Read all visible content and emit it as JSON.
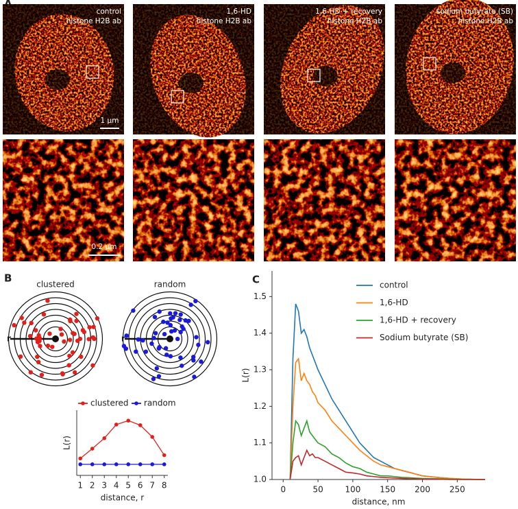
{
  "panel_a": {
    "label": "A",
    "images": [
      {
        "title": "control",
        "subtitle": "histone H2B ab"
      },
      {
        "title": "1,6-HD",
        "subtitle": "histone H2B ab"
      },
      {
        "title": "1,6-HD + recovery",
        "subtitle": "histone H2B ab"
      },
      {
        "title": "sodium butyrate (SB)",
        "subtitle": "histone H2B ab"
      }
    ],
    "scale_bars": [
      "1 μm",
      "0.2 μm"
    ]
  },
  "panel_b": {
    "label": "B",
    "diagrams": [
      "clustered",
      "random"
    ],
    "radius_label": "r"
  },
  "panel_c": {
    "label": "C"
  },
  "chart_data": [
    {
      "type": "line",
      "xlabel": "distance, r",
      "ylabel": "L(r)",
      "markers": true,
      "legend": "top",
      "x": [
        1,
        2,
        3,
        4,
        5,
        6,
        7,
        8
      ],
      "xlim": [
        0.7,
        8.3
      ],
      "xticks": [
        1,
        2,
        3,
        4,
        5,
        6,
        7,
        8
      ],
      "ylim": [
        0,
        1
      ],
      "series": [
        {
          "name": "clustered",
          "color": "#e0201b",
          "values": [
            0.26,
            0.41,
            0.57,
            0.78,
            0.84,
            0.77,
            0.59,
            0.31
          ]
        },
        {
          "name": "random",
          "color": "#1a1adb",
          "values": [
            0.17,
            0.17,
            0.17,
            0.17,
            0.17,
            0.17,
            0.17,
            0.17
          ]
        }
      ]
    },
    {
      "type": "line",
      "xlabel": "distance, nm",
      "ylabel": "L(r)",
      "markers": false,
      "legend": "upper right",
      "x": [
        10,
        14,
        18,
        22,
        26,
        30,
        34,
        38,
        42,
        46,
        50,
        60,
        70,
        80,
        90,
        100,
        110,
        120,
        130,
        140,
        150,
        160,
        170,
        180,
        190,
        200,
        220,
        240,
        260,
        290
      ],
      "xlim": [
        -16,
        290
      ],
      "xticks": [
        0,
        50,
        100,
        150,
        200,
        250
      ],
      "ylim": [
        1.0,
        1.57
      ],
      "yticks": [
        {
          "value": 1.0,
          "label": "1.0"
        },
        1.1,
        1.2,
        1.3,
        1.4,
        1.5
      ],
      "series": [
        {
          "name": "control",
          "color": "#1f77b4",
          "values": [
            1.0,
            1.33,
            1.48,
            1.46,
            1.4,
            1.41,
            1.39,
            1.36,
            1.34,
            1.32,
            1.3,
            1.26,
            1.22,
            1.19,
            1.16,
            1.13,
            1.1,
            1.08,
            1.06,
            1.05,
            1.04,
            1.03,
            1.025,
            1.02,
            1.015,
            1.01,
            1.006,
            1.003,
            1.001,
            1.0
          ]
        },
        {
          "name": "1,6-HD",
          "color": "#ff7f0e",
          "values": [
            1.0,
            1.2,
            1.32,
            1.33,
            1.27,
            1.29,
            1.27,
            1.26,
            1.24,
            1.23,
            1.21,
            1.19,
            1.16,
            1.14,
            1.12,
            1.1,
            1.08,
            1.065,
            1.05,
            1.04,
            1.035,
            1.03,
            1.025,
            1.02,
            1.015,
            1.01,
            1.006,
            1.003,
            1.001,
            1.0
          ]
        },
        {
          "name": "1,6-HD + recovery",
          "color": "#2ca02c",
          "values": [
            1.0,
            1.1,
            1.16,
            1.15,
            1.12,
            1.14,
            1.16,
            1.13,
            1.12,
            1.11,
            1.1,
            1.09,
            1.07,
            1.06,
            1.045,
            1.035,
            1.03,
            1.02,
            1.015,
            1.01,
            1.01,
            1.008,
            1.006,
            1.005,
            1.004,
            1.003,
            1.002,
            1.001,
            1.0,
            1.0
          ]
        },
        {
          "name": "Sodium butyrate (SB)",
          "color": "#c0282d",
          "values": [
            1.0,
            1.05,
            1.06,
            1.065,
            1.04,
            1.06,
            1.08,
            1.065,
            1.07,
            1.06,
            1.06,
            1.05,
            1.04,
            1.03,
            1.02,
            1.018,
            1.015,
            1.01,
            1.008,
            1.006,
            1.005,
            1.004,
            1.003,
            1.002,
            1.002,
            1.001,
            1.001,
            1.0,
            1.0,
            1.0
          ]
        }
      ]
    }
  ]
}
